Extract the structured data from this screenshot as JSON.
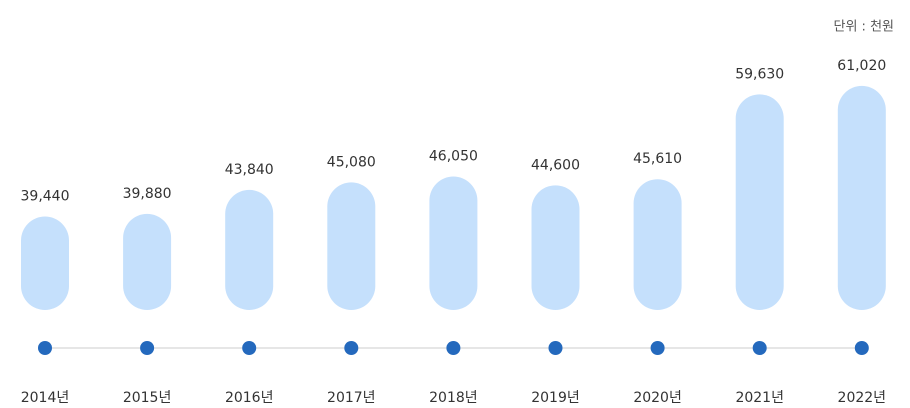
{
  "chart_data": {
    "type": "bar",
    "unit": "단위 : 천원",
    "categories": [
      "2014년",
      "2015년",
      "2016년",
      "2017년",
      "2018년",
      "2019년",
      "2020년",
      "2021년",
      "2022년"
    ],
    "values": [
      39440,
      39880,
      43840,
      45080,
      46050,
      44600,
      45610,
      59630,
      61020
    ],
    "value_labels": [
      "39,440",
      "39,880",
      "43,840",
      "45,080",
      "46,050",
      "44,600",
      "45,610",
      "59,630",
      "61,020"
    ],
    "color": "#c5e0fc",
    "ylim": [
      24000,
      62000
    ]
  }
}
